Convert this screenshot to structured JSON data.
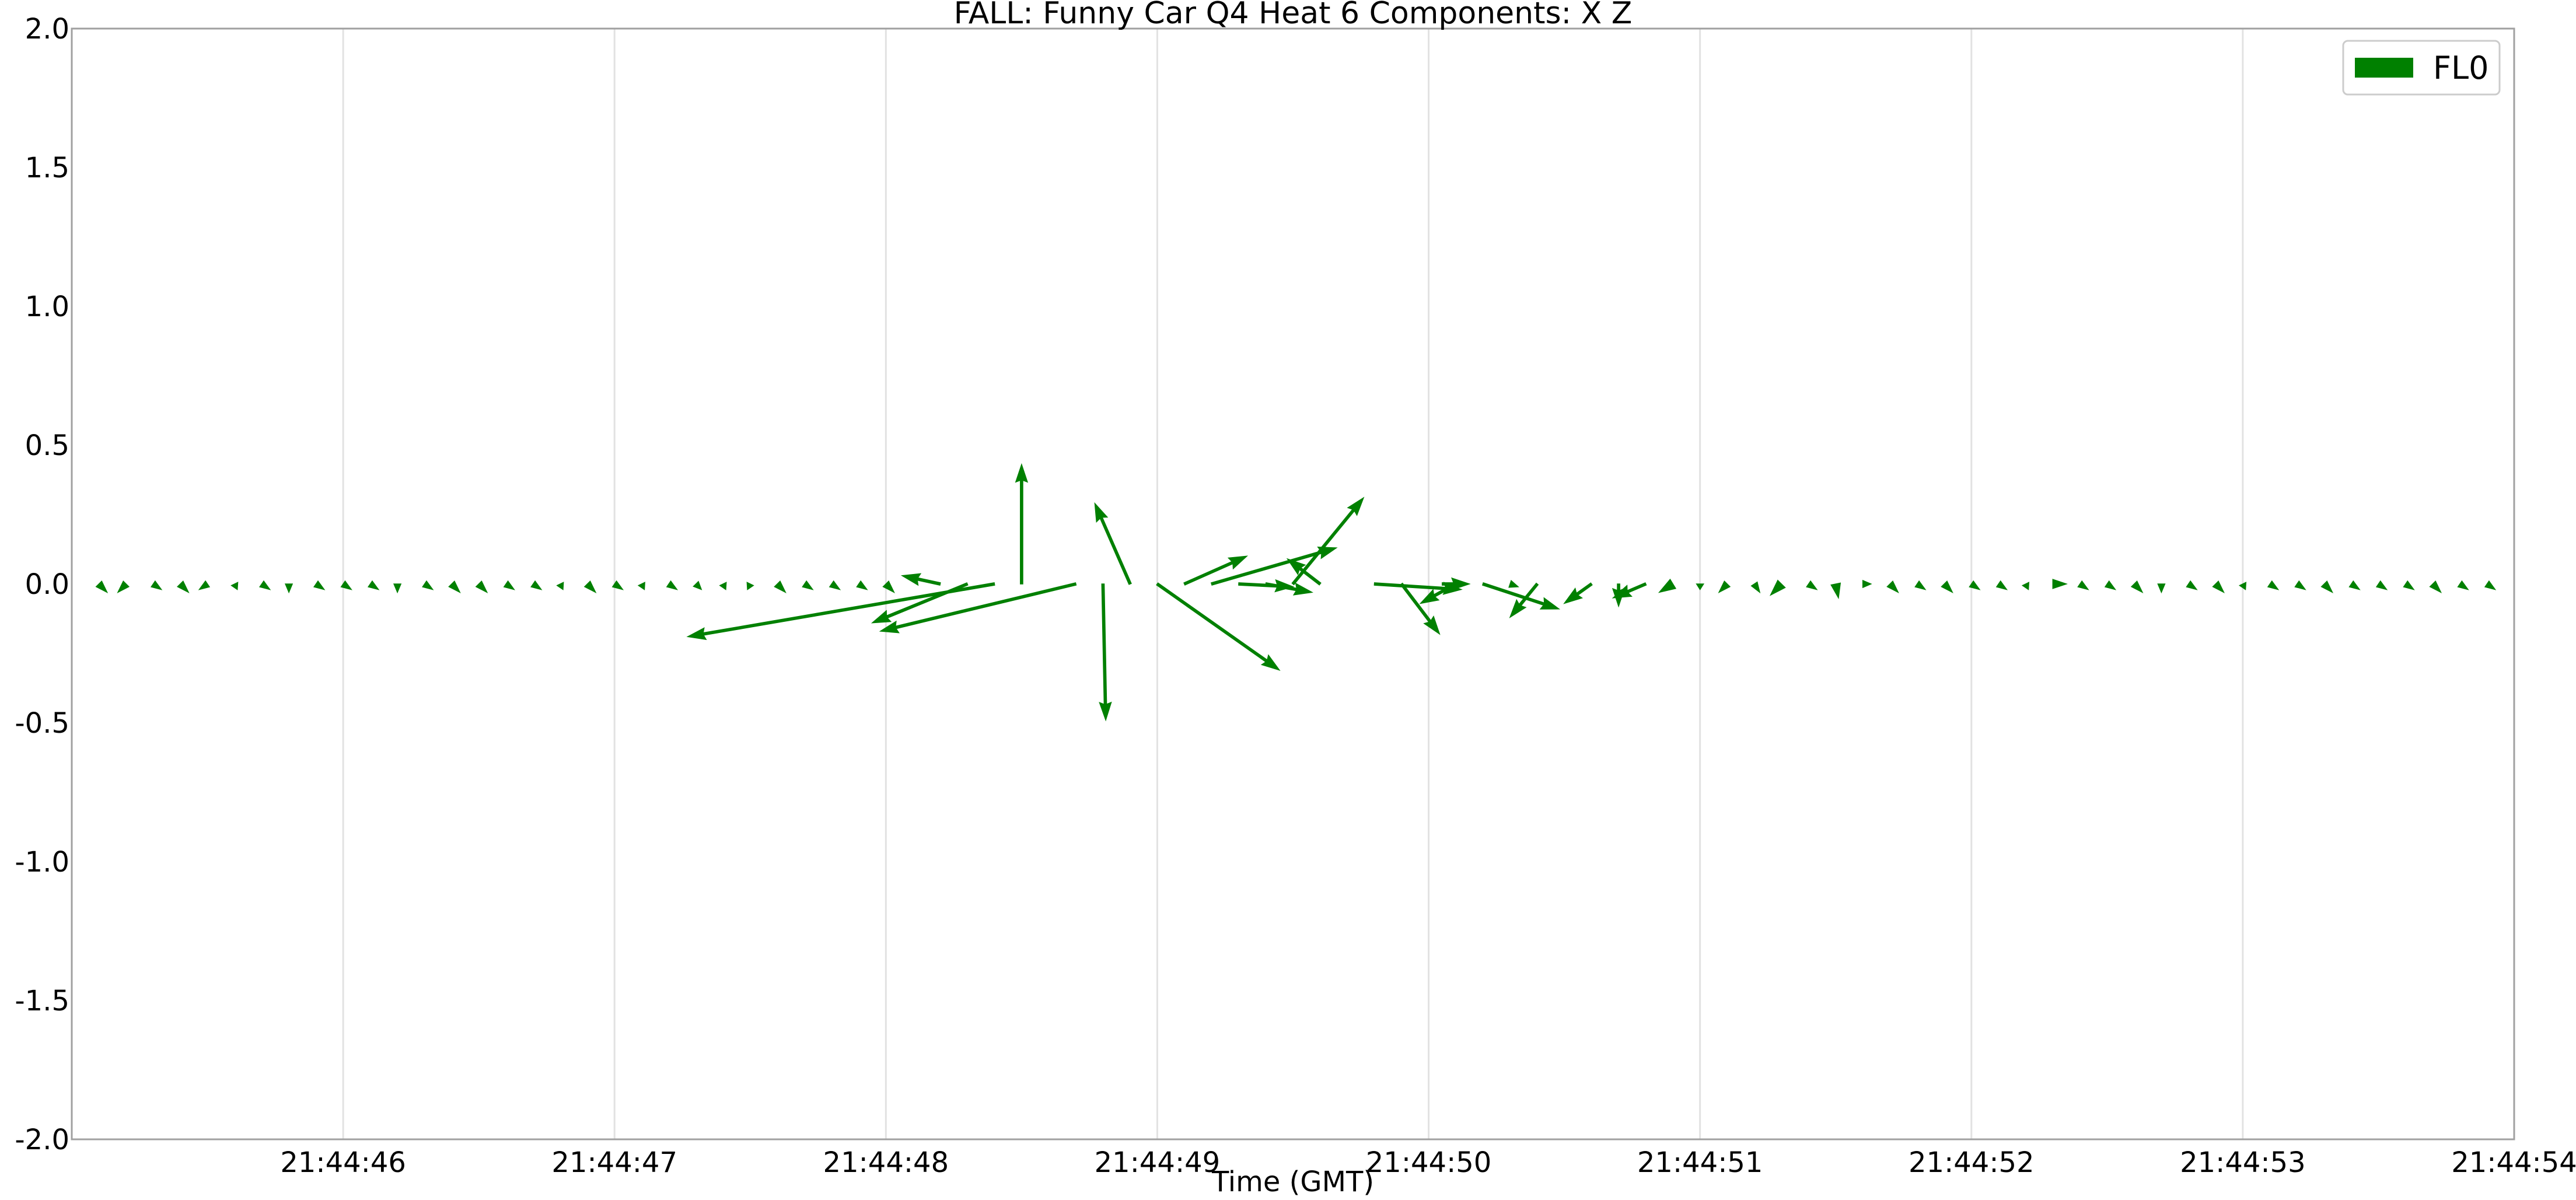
{
  "chart_data": {
    "type": "quiver",
    "title": "FALL: Funny Car Q4 Heat 6 Components: X Z",
    "xlabel": "Time (GMT)",
    "ylabel": "",
    "x_time_range": [
      "21:44:45.00",
      "21:44:54.00"
    ],
    "ylim": [
      -2.0,
      2.0
    ],
    "x_ticks": [
      "21:44:46",
      "21:44:47",
      "21:44:48",
      "21:44:49",
      "21:44:50",
      "21:44:51",
      "21:44:52",
      "21:44:53",
      "21:44:54"
    ],
    "y_ticks": [
      "2.0",
      "1.5",
      "1.0",
      "0.5",
      "0.0",
      "-0.5",
      "-1.0",
      "-1.5",
      "-2.0"
    ],
    "grid": "vertical",
    "legend": {
      "position": "top-right",
      "entries": [
        "FL0"
      ]
    },
    "series": [
      {
        "name": "FL0",
        "color": "#008000",
        "y": 0.0,
        "vector_units": "seconds of x-axis per unit x-component; z-component in y-axis units",
        "vectors": [
          {
            "t": "21:44:45.10",
            "u": 0.03,
            "v": -0.03
          },
          {
            "t": "21:44:45.20",
            "u": -0.03,
            "v": -0.03
          },
          {
            "t": "21:44:45.30",
            "u": 0.03,
            "v": -0.02
          },
          {
            "t": "21:44:45.40",
            "u": 0.03,
            "v": -0.03
          },
          {
            "t": "21:44:45.50",
            "u": -0.03,
            "v": -0.02
          },
          {
            "t": "21:44:45.60",
            "u": 0.01,
            "v": -0.02
          },
          {
            "t": "21:44:45.70",
            "u": 0.03,
            "v": -0.02
          },
          {
            "t": "21:44:45.80",
            "u": 0.0,
            "v": -0.03
          },
          {
            "t": "21:44:45.90",
            "u": 0.03,
            "v": -0.02
          },
          {
            "t": "21:44:46.00",
            "u": 0.03,
            "v": -0.02
          },
          {
            "t": "21:44:46.10",
            "u": 0.03,
            "v": -0.02
          },
          {
            "t": "21:44:46.20",
            "u": 0.0,
            "v": -0.03
          },
          {
            "t": "21:44:46.30",
            "u": 0.03,
            "v": -0.02
          },
          {
            "t": "21:44:46.40",
            "u": 0.03,
            "v": -0.03
          },
          {
            "t": "21:44:46.50",
            "u": 0.03,
            "v": -0.03
          },
          {
            "t": "21:44:46.60",
            "u": 0.03,
            "v": -0.02
          },
          {
            "t": "21:44:46.70",
            "u": 0.03,
            "v": -0.02
          },
          {
            "t": "21:44:46.80",
            "u": 0.01,
            "v": -0.02
          },
          {
            "t": "21:44:46.90",
            "u": 0.03,
            "v": -0.03
          },
          {
            "t": "21:44:47.00",
            "u": 0.03,
            "v": -0.02
          },
          {
            "t": "21:44:47.10",
            "u": 0.01,
            "v": -0.02
          },
          {
            "t": "21:44:47.20",
            "u": 0.03,
            "v": -0.02
          },
          {
            "t": "21:44:47.30",
            "u": 0.02,
            "v": -0.02
          },
          {
            "t": "21:44:47.40",
            "u": 0.01,
            "v": -0.02
          },
          {
            "t": "21:44:47.50",
            "u": -0.01,
            "v": -0.02
          },
          {
            "t": "21:44:47.60",
            "u": 0.03,
            "v": -0.03
          },
          {
            "t": "21:44:47.70",
            "u": 0.03,
            "v": -0.02
          },
          {
            "t": "21:44:47.80",
            "u": 0.03,
            "v": -0.02
          },
          {
            "t": "21:44:47.90",
            "u": 0.03,
            "v": -0.02
          },
          {
            "t": "21:44:48.00",
            "u": 0.03,
            "v": -0.03
          },
          {
            "t": "21:44:48.20",
            "u": -0.14,
            "v": 0.03
          },
          {
            "t": "21:44:48.30",
            "u": -0.35,
            "v": -0.14
          },
          {
            "t": "21:44:48.40",
            "u": -1.13,
            "v": -0.19
          },
          {
            "t": "21:44:48.50",
            "u": 0.0,
            "v": 0.43
          },
          {
            "t": "21:44:48.70",
            "u": -0.72,
            "v": -0.17
          },
          {
            "t": "21:44:48.80",
            "u": 0.01,
            "v": -0.49
          },
          {
            "t": "21:44:48.90",
            "u": -0.13,
            "v": 0.29
          },
          {
            "t": "21:44:49.00",
            "u": 0.45,
            "v": -0.31
          },
          {
            "t": "21:44:49.10",
            "u": 0.23,
            "v": 0.1
          },
          {
            "t": "21:44:49.20",
            "u": 0.46,
            "v": 0.13
          },
          {
            "t": "21:44:49.30",
            "u": 0.2,
            "v": -0.01
          },
          {
            "t": "21:44:49.40",
            "u": 0.17,
            "v": -0.03
          },
          {
            "t": "21:44:49.50",
            "u": 0.26,
            "v": 0.31
          },
          {
            "t": "21:44:49.60",
            "u": -0.12,
            "v": 0.09
          },
          {
            "t": "21:44:49.80",
            "u": 0.32,
            "v": -0.02
          },
          {
            "t": "21:44:49.90",
            "u": 0.14,
            "v": -0.18
          },
          {
            "t": "21:44:50.05",
            "u": 0.1,
            "v": 0.0
          },
          {
            "t": "21:44:50.10",
            "u": -0.13,
            "v": -0.07
          },
          {
            "t": "21:44:50.20",
            "u": 0.28,
            "v": -0.09
          },
          {
            "t": "21:44:50.30",
            "u": 0.03,
            "v": -0.01
          },
          {
            "t": "21:44:50.40",
            "u": -0.1,
            "v": -0.12
          },
          {
            "t": "21:44:50.60",
            "u": -0.1,
            "v": -0.07
          },
          {
            "t": "21:44:50.70",
            "u": 0.0,
            "v": -0.08
          },
          {
            "t": "21:44:50.80",
            "u": -0.12,
            "v": -0.05
          },
          {
            "t": "21:44:50.90",
            "u": -0.05,
            "v": -0.03
          },
          {
            "t": "21:44:51.00",
            "u": 0.0,
            "v": -0.02
          },
          {
            "t": "21:44:51.10",
            "u": -0.03,
            "v": -0.03
          },
          {
            "t": "21:44:51.20",
            "u": 0.02,
            "v": -0.03
          },
          {
            "t": "21:44:51.30",
            "u": -0.04,
            "v": -0.04
          },
          {
            "t": "21:44:51.40",
            "u": 0.03,
            "v": -0.02
          },
          {
            "t": "21:44:51.50",
            "u": 0.01,
            "v": -0.05
          },
          {
            "t": "21:44:51.60",
            "u": 0.03,
            "v": 0.0
          },
          {
            "t": "21:44:51.70",
            "u": 0.03,
            "v": -0.03
          },
          {
            "t": "21:44:51.80",
            "u": 0.03,
            "v": -0.02
          },
          {
            "t": "21:44:51.90",
            "u": 0.03,
            "v": -0.03
          },
          {
            "t": "21:44:52.00",
            "u": 0.03,
            "v": -0.02
          },
          {
            "t": "21:44:52.10",
            "u": 0.03,
            "v": -0.02
          },
          {
            "t": "21:44:52.20",
            "u": 0.01,
            "v": -0.02
          },
          {
            "t": "21:44:52.30",
            "u": 0.05,
            "v": 0.0
          },
          {
            "t": "21:44:52.40",
            "u": 0.03,
            "v": -0.02
          },
          {
            "t": "21:44:52.50",
            "u": 0.03,
            "v": -0.02
          },
          {
            "t": "21:44:52.60",
            "u": 0.03,
            "v": -0.03
          },
          {
            "t": "21:44:52.70",
            "u": 0.0,
            "v": -0.03
          },
          {
            "t": "21:44:52.80",
            "u": 0.03,
            "v": -0.02
          },
          {
            "t": "21:44:52.90",
            "u": 0.03,
            "v": -0.03
          },
          {
            "t": "21:44:53.00",
            "u": 0.01,
            "v": -0.02
          },
          {
            "t": "21:44:53.10",
            "u": 0.03,
            "v": -0.02
          },
          {
            "t": "21:44:53.20",
            "u": 0.03,
            "v": -0.02
          },
          {
            "t": "21:44:53.30",
            "u": 0.03,
            "v": -0.03
          },
          {
            "t": "21:44:53.40",
            "u": 0.03,
            "v": -0.02
          },
          {
            "t": "21:44:53.50",
            "u": 0.03,
            "v": -0.02
          },
          {
            "t": "21:44:53.60",
            "u": 0.03,
            "v": -0.02
          },
          {
            "t": "21:44:53.70",
            "u": 0.03,
            "v": -0.03
          },
          {
            "t": "21:44:53.80",
            "u": 0.03,
            "v": -0.02
          },
          {
            "t": "21:44:53.90",
            "u": 0.03,
            "v": -0.02
          }
        ]
      }
    ]
  }
}
